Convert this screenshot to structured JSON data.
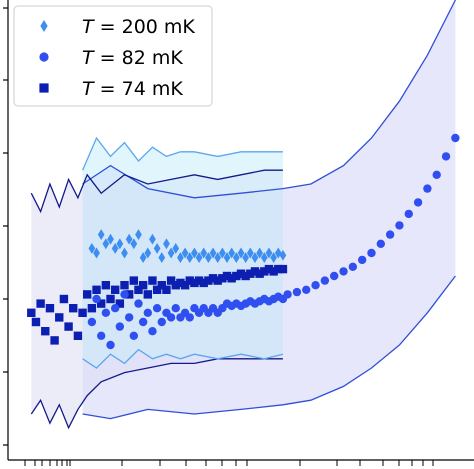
{
  "chart_data": {
    "type": "scatter",
    "title": "",
    "xlabel": "",
    "ylabel": "",
    "xlim": [
      0,
      1
    ],
    "ylim": [
      0,
      1
    ],
    "grid": false,
    "legend_position": "top-left",
    "series": [
      {
        "name_parts": [
          "T",
          " = 200 mK"
        ],
        "marker": "diamond",
        "color": "#3d8ef0",
        "band_upper_color": "#5aa7ee",
        "band_lower_color": "#5aa7ee",
        "band_fill": "#c8ecfb",
        "points": [
          [
            0.18,
            0.46
          ],
          [
            0.19,
            0.45
          ],
          [
            0.2,
            0.49
          ],
          [
            0.21,
            0.47
          ],
          [
            0.22,
            0.48
          ],
          [
            0.23,
            0.46
          ],
          [
            0.24,
            0.47
          ],
          [
            0.25,
            0.45
          ],
          [
            0.26,
            0.48
          ],
          [
            0.27,
            0.47
          ],
          [
            0.28,
            0.49
          ],
          [
            0.29,
            0.44
          ],
          [
            0.3,
            0.45
          ],
          [
            0.31,
            0.48
          ],
          [
            0.32,
            0.46
          ],
          [
            0.33,
            0.44
          ],
          [
            0.34,
            0.47
          ],
          [
            0.35,
            0.45
          ],
          [
            0.36,
            0.46
          ],
          [
            0.37,
            0.44
          ],
          [
            0.38,
            0.45
          ],
          [
            0.39,
            0.44
          ],
          [
            0.4,
            0.45
          ],
          [
            0.41,
            0.44
          ],
          [
            0.42,
            0.45
          ],
          [
            0.43,
            0.44
          ],
          [
            0.44,
            0.45
          ],
          [
            0.45,
            0.44
          ],
          [
            0.46,
            0.45
          ],
          [
            0.47,
            0.44
          ],
          [
            0.48,
            0.45
          ],
          [
            0.49,
            0.44
          ],
          [
            0.5,
            0.45
          ],
          [
            0.51,
            0.44
          ],
          [
            0.52,
            0.45
          ],
          [
            0.53,
            0.44
          ],
          [
            0.54,
            0.45
          ],
          [
            0.55,
            0.44
          ],
          [
            0.56,
            0.45
          ],
          [
            0.57,
            0.44
          ],
          [
            0.58,
            0.45
          ],
          [
            0.59,
            0.445
          ]
        ],
        "upper": [
          [
            0.16,
            0.63
          ],
          [
            0.19,
            0.7
          ],
          [
            0.22,
            0.66
          ],
          [
            0.25,
            0.69
          ],
          [
            0.28,
            0.65
          ],
          [
            0.31,
            0.68
          ],
          [
            0.34,
            0.66
          ],
          [
            0.37,
            0.67
          ],
          [
            0.4,
            0.67
          ],
          [
            0.45,
            0.66
          ],
          [
            0.5,
            0.67
          ],
          [
            0.55,
            0.67
          ],
          [
            0.59,
            0.67
          ]
        ],
        "lower": [
          [
            0.16,
            0.22
          ],
          [
            0.19,
            0.2
          ],
          [
            0.22,
            0.23
          ],
          [
            0.25,
            0.21
          ],
          [
            0.28,
            0.24
          ],
          [
            0.31,
            0.22
          ],
          [
            0.34,
            0.23
          ],
          [
            0.37,
            0.22
          ],
          [
            0.4,
            0.23
          ],
          [
            0.45,
            0.22
          ],
          [
            0.5,
            0.23
          ],
          [
            0.55,
            0.22
          ],
          [
            0.59,
            0.23
          ]
        ]
      },
      {
        "name_parts": [
          "T",
          " = 82 mK"
        ],
        "marker": "circle",
        "color": "#2f4ff0",
        "band_upper_color": "#2f4fd8",
        "band_lower_color": "#2f4fd8",
        "band_fill": "#d3d4f7",
        "points": [
          [
            0.18,
            0.3
          ],
          [
            0.19,
            0.35
          ],
          [
            0.2,
            0.27
          ],
          [
            0.21,
            0.32
          ],
          [
            0.22,
            0.25
          ],
          [
            0.23,
            0.33
          ],
          [
            0.24,
            0.29
          ],
          [
            0.25,
            0.36
          ],
          [
            0.26,
            0.31
          ],
          [
            0.27,
            0.27
          ],
          [
            0.28,
            0.34
          ],
          [
            0.29,
            0.3
          ],
          [
            0.3,
            0.32
          ],
          [
            0.31,
            0.28
          ],
          [
            0.32,
            0.33
          ],
          [
            0.33,
            0.3
          ],
          [
            0.34,
            0.32
          ],
          [
            0.35,
            0.31
          ],
          [
            0.36,
            0.33
          ],
          [
            0.37,
            0.31
          ],
          [
            0.38,
            0.32
          ],
          [
            0.39,
            0.31
          ],
          [
            0.4,
            0.33
          ],
          [
            0.41,
            0.32
          ],
          [
            0.42,
            0.33
          ],
          [
            0.43,
            0.32
          ],
          [
            0.44,
            0.33
          ],
          [
            0.45,
            0.32
          ],
          [
            0.46,
            0.33
          ],
          [
            0.47,
            0.34
          ],
          [
            0.48,
            0.335
          ],
          [
            0.49,
            0.34
          ],
          [
            0.5,
            0.335
          ],
          [
            0.51,
            0.34
          ],
          [
            0.52,
            0.345
          ],
          [
            0.53,
            0.34
          ],
          [
            0.54,
            0.345
          ],
          [
            0.55,
            0.35
          ],
          [
            0.56,
            0.345
          ],
          [
            0.57,
            0.35
          ],
          [
            0.58,
            0.355
          ],
          [
            0.59,
            0.35
          ],
          [
            0.6,
            0.36
          ],
          [
            0.62,
            0.365
          ],
          [
            0.64,
            0.37
          ],
          [
            0.66,
            0.38
          ],
          [
            0.68,
            0.39
          ],
          [
            0.7,
            0.4
          ],
          [
            0.72,
            0.41
          ],
          [
            0.74,
            0.42
          ],
          [
            0.76,
            0.435
          ],
          [
            0.78,
            0.45
          ],
          [
            0.8,
            0.47
          ],
          [
            0.82,
            0.49
          ],
          [
            0.84,
            0.51
          ],
          [
            0.86,
            0.535
          ],
          [
            0.88,
            0.56
          ],
          [
            0.9,
            0.59
          ],
          [
            0.92,
            0.62
          ],
          [
            0.94,
            0.66
          ],
          [
            0.96,
            0.7
          ]
        ],
        "upper": [
          [
            0.16,
            0.6
          ],
          [
            0.22,
            0.64
          ],
          [
            0.3,
            0.59
          ],
          [
            0.4,
            0.57
          ],
          [
            0.5,
            0.58
          ],
          [
            0.59,
            0.59
          ],
          [
            0.65,
            0.6
          ],
          [
            0.72,
            0.64
          ],
          [
            0.78,
            0.7
          ],
          [
            0.84,
            0.78
          ],
          [
            0.9,
            0.88
          ],
          [
            0.96,
            1.0
          ]
        ],
        "lower": [
          [
            0.16,
            0.1
          ],
          [
            0.22,
            0.09
          ],
          [
            0.3,
            0.11
          ],
          [
            0.4,
            0.1
          ],
          [
            0.5,
            0.11
          ],
          [
            0.59,
            0.12
          ],
          [
            0.65,
            0.13
          ],
          [
            0.72,
            0.16
          ],
          [
            0.78,
            0.2
          ],
          [
            0.84,
            0.25
          ],
          [
            0.9,
            0.32
          ],
          [
            0.96,
            0.4
          ]
        ]
      },
      {
        "name_parts": [
          "T",
          " = 74 mK"
        ],
        "marker": "square",
        "color": "#0c1fb0",
        "band_upper_color": "#141a8a",
        "band_lower_color": "#141a8a",
        "band_fill": "#dcdcf4",
        "points": [
          [
            0.05,
            0.32
          ],
          [
            0.06,
            0.3
          ],
          [
            0.07,
            0.34
          ],
          [
            0.08,
            0.28
          ],
          [
            0.09,
            0.33
          ],
          [
            0.1,
            0.26
          ],
          [
            0.11,
            0.31
          ],
          [
            0.12,
            0.35
          ],
          [
            0.13,
            0.29
          ],
          [
            0.14,
            0.33
          ],
          [
            0.15,
            0.27
          ],
          [
            0.16,
            0.32
          ],
          [
            0.17,
            0.36
          ],
          [
            0.18,
            0.33
          ],
          [
            0.19,
            0.37
          ],
          [
            0.2,
            0.34
          ],
          [
            0.21,
            0.38
          ],
          [
            0.22,
            0.35
          ],
          [
            0.23,
            0.37
          ],
          [
            0.24,
            0.34
          ],
          [
            0.25,
            0.38
          ],
          [
            0.26,
            0.36
          ],
          [
            0.27,
            0.39
          ],
          [
            0.28,
            0.37
          ],
          [
            0.29,
            0.38
          ],
          [
            0.3,
            0.36
          ],
          [
            0.31,
            0.39
          ],
          [
            0.32,
            0.37
          ],
          [
            0.33,
            0.38
          ],
          [
            0.34,
            0.37
          ],
          [
            0.35,
            0.39
          ],
          [
            0.36,
            0.38
          ],
          [
            0.37,
            0.385
          ],
          [
            0.38,
            0.38
          ],
          [
            0.39,
            0.39
          ],
          [
            0.4,
            0.385
          ],
          [
            0.41,
            0.39
          ],
          [
            0.42,
            0.385
          ],
          [
            0.43,
            0.39
          ],
          [
            0.44,
            0.395
          ],
          [
            0.45,
            0.39
          ],
          [
            0.46,
            0.395
          ],
          [
            0.47,
            0.4
          ],
          [
            0.48,
            0.395
          ],
          [
            0.49,
            0.4
          ],
          [
            0.5,
            0.405
          ],
          [
            0.51,
            0.4
          ],
          [
            0.52,
            0.405
          ],
          [
            0.53,
            0.41
          ],
          [
            0.54,
            0.405
          ],
          [
            0.55,
            0.41
          ],
          [
            0.56,
            0.415
          ],
          [
            0.57,
            0.41
          ],
          [
            0.58,
            0.415
          ],
          [
            0.59,
            0.415
          ]
        ],
        "upper": [
          [
            0.05,
            0.58
          ],
          [
            0.07,
            0.54
          ],
          [
            0.09,
            0.6
          ],
          [
            0.11,
            0.55
          ],
          [
            0.13,
            0.61
          ],
          [
            0.15,
            0.57
          ],
          [
            0.17,
            0.62
          ],
          [
            0.2,
            0.58
          ],
          [
            0.25,
            0.62
          ],
          [
            0.3,
            0.6
          ],
          [
            0.35,
            0.61
          ],
          [
            0.4,
            0.62
          ],
          [
            0.45,
            0.61
          ],
          [
            0.5,
            0.62
          ],
          [
            0.55,
            0.63
          ],
          [
            0.59,
            0.63
          ]
        ],
        "lower": [
          [
            0.05,
            0.1
          ],
          [
            0.07,
            0.13
          ],
          [
            0.09,
            0.08
          ],
          [
            0.11,
            0.12
          ],
          [
            0.13,
            0.07
          ],
          [
            0.15,
            0.11
          ],
          [
            0.17,
            0.14
          ],
          [
            0.2,
            0.17
          ],
          [
            0.25,
            0.19
          ],
          [
            0.3,
            0.2
          ],
          [
            0.35,
            0.21
          ],
          [
            0.4,
            0.21
          ],
          [
            0.45,
            0.22
          ],
          [
            0.5,
            0.22
          ],
          [
            0.55,
            0.22
          ],
          [
            0.59,
            0.22
          ]
        ]
      }
    ]
  }
}
